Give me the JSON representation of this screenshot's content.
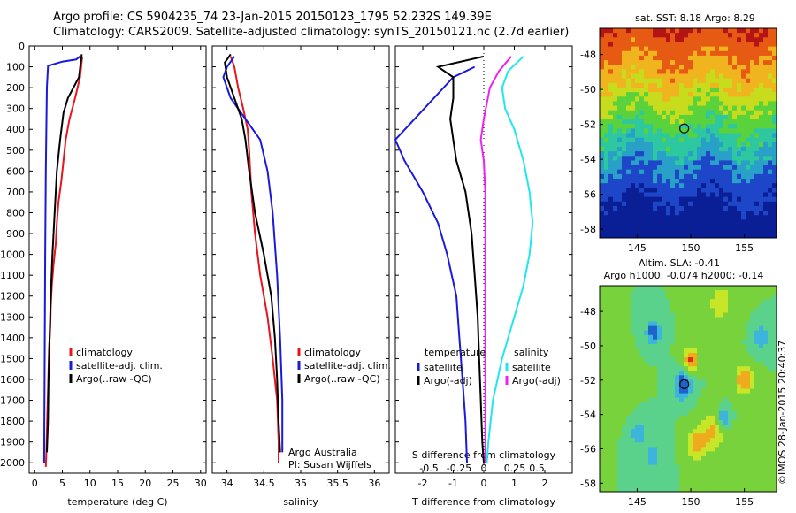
{
  "header": {
    "line1": "Argo profile: CS 5904235_74 23-Jan-2015 20150123_1795 52.232S 149.39E",
    "line2": "Climatology: CARS2009. Satellite-adjusted climatology: synTS_20150121.nc (2.7d earlier)"
  },
  "colors": {
    "red": "#e8141e",
    "blue": "#1a1adc",
    "black": "#000000",
    "cyan": "#22e6ee",
    "magenta": "#ee22ee"
  },
  "chart_data": [
    {
      "type": "line",
      "xlabel": "temperature (deg C)",
      "xticks": [
        "0",
        "5",
        "10",
        "15",
        "20",
        "25",
        "30"
      ],
      "xlim": [
        -1,
        31
      ],
      "ylim": [
        2050,
        0
      ],
      "yticks": [
        "0",
        "100",
        "200",
        "300",
        "400",
        "500",
        "600",
        "700",
        "800",
        "900",
        "1000",
        "1100",
        "1200",
        "1300",
        "1400",
        "1500",
        "1600",
        "1700",
        "1800",
        "1900",
        "2000"
      ],
      "legend": [
        "climatology",
        "satellite-adj. clim.",
        "Argo(..raw -QC)"
      ],
      "series": [
        {
          "color": "red",
          "points": [
            [
              8.6,
              50
            ],
            [
              8.2,
              150
            ],
            [
              7.3,
              250
            ],
            [
              6.3,
              350
            ],
            [
              5.6,
              450
            ],
            [
              5.2,
              550
            ],
            [
              4.8,
              650
            ],
            [
              4.3,
              750
            ],
            [
              4.0,
              850
            ],
            [
              3.8,
              950
            ],
            [
              3.4,
              1050
            ],
            [
              3.1,
              1150
            ],
            [
              2.9,
              1250
            ],
            [
              2.8,
              1350
            ],
            [
              2.6,
              1450
            ],
            [
              2.5,
              1550
            ],
            [
              2.4,
              1650
            ],
            [
              2.3,
              1750
            ],
            [
              2.2,
              1850
            ],
            [
              2.1,
              1950
            ],
            [
              2.0,
              2020
            ]
          ]
        },
        {
          "color": "blue",
          "points": [
            [
              8.2,
              50
            ],
            [
              7.5,
              65
            ],
            [
              5,
              75
            ],
            [
              2.4,
              95
            ],
            [
              2.2,
              200
            ],
            [
              2.0,
              600
            ],
            [
              1.9,
              1000
            ],
            [
              1.8,
              1500
            ],
            [
              1.7,
              2000
            ]
          ]
        },
        {
          "color": "black",
          "points": [
            [
              8.5,
              40
            ],
            [
              8.0,
              150
            ],
            [
              7.0,
              200
            ],
            [
              6.0,
              250
            ],
            [
              5.2,
              320
            ],
            [
              4.6,
              450
            ],
            [
              4.0,
              600
            ],
            [
              3.6,
              800
            ],
            [
              3.2,
              1000
            ],
            [
              2.9,
              1200
            ],
            [
              2.7,
              1400
            ],
            [
              2.5,
              1600
            ],
            [
              2.4,
              1800
            ],
            [
              2.2,
              1950
            ]
          ]
        }
      ]
    },
    {
      "type": "line",
      "xlabel": "salinity",
      "xticks": [
        "34",
        "34.5",
        "35",
        "35.5",
        "36"
      ],
      "xlim": [
        33.8,
        36.2
      ],
      "ylim": [
        2050,
        0
      ],
      "legend": [
        "climatology",
        "satellite-adj. clim.",
        "Argo(..raw -QC)"
      ],
      "annotations": [
        "Argo Australia",
        "PI: Susan Wijffels"
      ],
      "series": [
        {
          "color": "red",
          "points": [
            [
              34.05,
              50
            ],
            [
              34.1,
              100
            ],
            [
              34.15,
              200
            ],
            [
              34.22,
              300
            ],
            [
              34.28,
              400
            ],
            [
              34.3,
              500
            ],
            [
              34.33,
              700
            ],
            [
              34.38,
              900
            ],
            [
              34.45,
              1100
            ],
            [
              34.55,
              1300
            ],
            [
              34.62,
              1500
            ],
            [
              34.68,
              1700
            ],
            [
              34.7,
              1900
            ],
            [
              34.7,
              2000
            ]
          ]
        },
        {
          "color": "blue",
          "points": [
            [
              34.1,
              50
            ],
            [
              34.0,
              100
            ],
            [
              33.95,
              150
            ],
            [
              34.05,
              250
            ],
            [
              34.25,
              350
            ],
            [
              34.45,
              450
            ],
            [
              34.55,
              600
            ],
            [
              34.62,
              800
            ],
            [
              34.68,
              1100
            ],
            [
              34.72,
              1400
            ],
            [
              34.75,
              1700
            ],
            [
              34.75,
              1950
            ]
          ]
        },
        {
          "color": "black",
          "points": [
            [
              34.05,
              40
            ],
            [
              33.97,
              80
            ],
            [
              34.0,
              150
            ],
            [
              34.1,
              250
            ],
            [
              34.2,
              350
            ],
            [
              34.25,
              450
            ],
            [
              34.3,
              600
            ],
            [
              34.38,
              800
            ],
            [
              34.5,
              1000
            ],
            [
              34.6,
              1200
            ],
            [
              34.65,
              1400
            ],
            [
              34.68,
              1600
            ],
            [
              34.7,
              1800
            ],
            [
              34.72,
              1950
            ]
          ]
        }
      ]
    },
    {
      "type": "line",
      "xlabel": "T difference from climatology",
      "xticks": [
        "-2",
        "-1",
        "0",
        "1",
        "2"
      ],
      "top_xlabel": "S difference from climatology",
      "top_xticks": [
        "-0.5",
        "-0.25",
        "0",
        "0.25",
        "0.5"
      ],
      "xlim": [
        -2.9,
        2.9
      ],
      "ylim": [
        2050,
        0
      ],
      "legend_left_title": "temperature",
      "legend_right_title": "salinity",
      "legend": [
        "satellite",
        "Argo(-adj)",
        "satellite",
        "Argo(-adj)"
      ],
      "series": [
        {
          "color": "blue",
          "points": [
            [
              -0.3,
              100
            ],
            [
              -1.0,
              150
            ],
            [
              -2.9,
              450
            ],
            [
              -2.6,
              550
            ],
            [
              -2.0,
              700
            ],
            [
              -1.5,
              850
            ],
            [
              -1.2,
              1000
            ],
            [
              -0.9,
              1200
            ],
            [
              -0.8,
              1400
            ],
            [
              -0.7,
              1600
            ],
            [
              -0.6,
              1800
            ],
            [
              -0.55,
              2000
            ]
          ]
        },
        {
          "color": "black",
          "points": [
            [
              0,
              50
            ],
            [
              -1.5,
              100
            ],
            [
              -1.0,
              150
            ],
            [
              -1.0,
              250
            ],
            [
              -1.1,
              350
            ],
            [
              -1.0,
              450
            ],
            [
              -0.9,
              550
            ],
            [
              -0.6,
              700
            ],
            [
              -0.4,
              900
            ],
            [
              -0.3,
              1100
            ],
            [
              -0.2,
              1300
            ],
            [
              -0.15,
              1500
            ],
            [
              -0.1,
              1700
            ],
            [
              -0.05,
              1900
            ],
            [
              0.0,
              2000
            ]
          ]
        },
        {
          "color": "cyan",
          "points": [
            [
              1.3,
              50
            ],
            [
              0.8,
              120
            ],
            [
              0.6,
              200
            ],
            [
              0.7,
              300
            ],
            [
              1.0,
              400
            ],
            [
              1.3,
              550
            ],
            [
              1.5,
              700
            ],
            [
              1.6,
              850
            ],
            [
              1.5,
              1000
            ],
            [
              1.3,
              1150
            ],
            [
              1.0,
              1300
            ],
            [
              0.6,
              1500
            ],
            [
              0.3,
              1700
            ],
            [
              0.15,
              1900
            ],
            [
              0.1,
              2000
            ]
          ]
        },
        {
          "color": "magenta",
          "points": [
            [
              0.9,
              50
            ],
            [
              0.5,
              120
            ],
            [
              0.2,
              200
            ],
            [
              0.0,
              350
            ],
            [
              -0.1,
              450
            ],
            [
              0.0,
              550
            ],
            [
              0.05,
              700
            ],
            [
              0.05,
              900
            ],
            [
              0.05,
              1100
            ],
            [
              0.05,
              1300
            ],
            [
              0.05,
              1500
            ],
            [
              0.05,
              1700
            ],
            [
              0.05,
              1900
            ],
            [
              0.05,
              2000
            ]
          ]
        }
      ]
    },
    {
      "type": "heatmap",
      "title": "sat. SST: 8.18  Argo: 8.29",
      "xticks": [
        "145",
        "150",
        "155"
      ],
      "yticks": [
        "-48",
        "-50",
        "-52",
        "-54",
        "-56",
        "-58"
      ],
      "xlim": [
        141.5,
        158
      ],
      "ylim": [
        -58.5,
        -46.5
      ],
      "marker": [
        149.39,
        -52.232
      ]
    },
    {
      "type": "heatmap",
      "title_line1": "Altim. SLA: -0.41",
      "title_line2": "Argo h1000: -0.074 h2000: -0.14",
      "xticks": [
        "145",
        "150",
        "155"
      ],
      "yticks": [
        "-48",
        "-50",
        "-52",
        "-54",
        "-56",
        "-58"
      ],
      "xlim": [
        141.5,
        158
      ],
      "ylim": [
        -58.5,
        -46.5
      ],
      "marker": [
        149.39,
        -52.232
      ]
    }
  ],
  "stamp": "©IMOS 28-Jan-2015 20:40:37"
}
